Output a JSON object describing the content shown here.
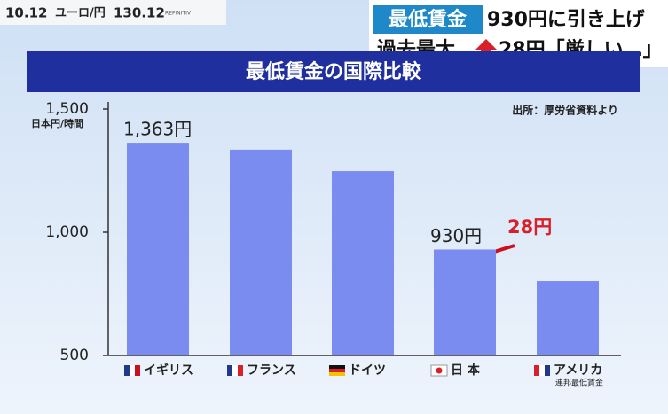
{
  "ticker": {
    "date": "10.12",
    "pair": "ユーロ/円",
    "rate": "130.12",
    "source": "REFINITIV"
  },
  "headline": {
    "tag": "最低賃金",
    "line1": "930円に引き上げ",
    "line2a": "過去最大",
    "line2b": "28円「厳しい…」"
  },
  "chart_data": {
    "type": "bar",
    "title": "最低賃金の国際比較",
    "ylabel": "日本円/時間",
    "source": "出所：厚労省資料より",
    "categories": [
      "イギリス",
      "フランス",
      "ドイツ",
      "日 本",
      "アメリカ"
    ],
    "category_notes": [
      null,
      null,
      null,
      null,
      "連邦最低賃金"
    ],
    "values": [
      1363,
      1335,
      1248,
      930,
      802
    ],
    "value_labels": [
      "1,363円",
      null,
      null,
      "930円",
      null
    ],
    "annotation": "28円",
    "color": "#7b8cf0",
    "ylim": [
      500,
      1500
    ],
    "yticks": [
      500,
      {
        "value": 1000,
        "label": "1,000"
      },
      {
        "value": 1500,
        "label": "1,500"
      }
    ]
  }
}
